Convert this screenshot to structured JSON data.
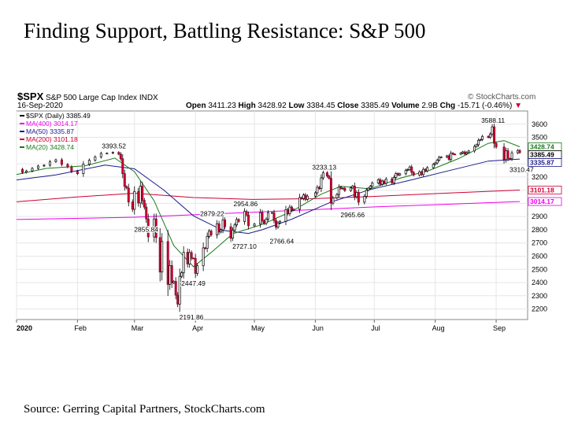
{
  "slide": {
    "title": "Finding Support, Battling Resistance: S&P 500",
    "source": "Source: Gerring Capital Partners, StockCharts.com"
  },
  "header": {
    "ticker": "$SPX",
    "name": "S&P 500 Large Cap Index",
    "exchange": "INDX",
    "date": "16-Sep-2020",
    "watermark": "© StockCharts.com",
    "open_label": "Open",
    "open": "3411.23",
    "high_label": "High",
    "high": "3428.92",
    "low_label": "Low",
    "low": "3384.45",
    "close_label": "Close",
    "close": "3385.49",
    "volume_label": "Volume",
    "volume": "2.9B",
    "chg_label": "Chg",
    "chg": "-15.71 (-0.46%)"
  },
  "legend": [
    {
      "text": "$SPX (Daily) 3385.49",
      "color": "#000000"
    },
    {
      "text": "MA(400) 3014.17",
      "color": "#ee00ee"
    },
    {
      "text": "MA(50) 3335.87",
      "color": "#1a1a8c"
    },
    {
      "text": "MA(200) 3101.18",
      "color": "#cc0033"
    },
    {
      "text": "MA(20) 3428.74",
      "color": "#1a7a1a"
    }
  ],
  "chart_data": {
    "type": "candlestick",
    "x_tick_labels": [
      "2020",
      "Feb",
      "Mar",
      "Apr",
      "May",
      "Jun",
      "Jul",
      "Aug",
      "Sep"
    ],
    "x_tick_days": [
      0,
      31,
      60,
      91,
      121,
      152,
      182,
      213,
      244
    ],
    "y_ticks": [
      2200,
      2300,
      2400,
      2500,
      2600,
      2700,
      2800,
      2900,
      3000,
      3100,
      3200,
      3300,
      3500,
      3600
    ],
    "ylim": [
      2120,
      3700
    ],
    "xlim_days": [
      0,
      260
    ],
    "closes": [
      [
        0,
        3258
      ],
      [
        3,
        3235
      ],
      [
        5,
        3246
      ],
      [
        8,
        3265
      ],
      [
        11,
        3283
      ],
      [
        14,
        3289
      ],
      [
        17,
        3316
      ],
      [
        20,
        3330
      ],
      [
        23,
        3295
      ],
      [
        26,
        3276
      ],
      [
        28,
        3243
      ],
      [
        31,
        3225
      ],
      [
        34,
        3297
      ],
      [
        37,
        3327
      ],
      [
        40,
        3352
      ],
      [
        43,
        3379
      ],
      [
        46,
        3380
      ],
      [
        49,
        3386
      ],
      [
        52,
        3373
      ],
      [
        53,
        3338
      ],
      [
        54,
        3225
      ],
      [
        55,
        3128
      ],
      [
        56,
        3116
      ],
      [
        57,
        3010
      ],
      [
        59,
        2955
      ],
      [
        60,
        3090
      ],
      [
        62,
        3003
      ],
      [
        63,
        3130
      ],
      [
        64,
        3023
      ],
      [
        65,
        2972
      ],
      [
        66,
        2882
      ],
      [
        67,
        2746
      ],
      [
        70,
        2882
      ],
      [
        71,
        2741
      ],
      [
        73,
        2480
      ],
      [
        74,
        2711
      ],
      [
        77,
        2386
      ],
      [
        78,
        2529
      ],
      [
        79,
        2398
      ],
      [
        80,
        2409
      ],
      [
        81,
        2305
      ],
      [
        82,
        2237
      ],
      [
        83,
        2447
      ],
      [
        84,
        2475
      ],
      [
        85,
        2630
      ],
      [
        87,
        2541
      ],
      [
        88,
        2627
      ],
      [
        89,
        2585
      ],
      [
        90,
        2584
      ],
      [
        91,
        2470
      ],
      [
        92,
        2527
      ],
      [
        95,
        2663
      ],
      [
        96,
        2659
      ],
      [
        97,
        2750
      ],
      [
        98,
        2790
      ],
      [
        99,
        2761
      ],
      [
        102,
        2846
      ],
      [
        103,
        2783
      ],
      [
        104,
        2799
      ],
      [
        105,
        2875
      ],
      [
        106,
        2823
      ],
      [
        109,
        2736
      ],
      [
        110,
        2797
      ],
      [
        111,
        2837
      ],
      [
        112,
        2878
      ],
      [
        113,
        2863
      ],
      [
        116,
        2939
      ],
      [
        117,
        2912
      ],
      [
        118,
        2830
      ],
      [
        121,
        2843
      ],
      [
        124,
        2930
      ],
      [
        125,
        2868
      ],
      [
        126,
        2848
      ],
      [
        127,
        2881
      ],
      [
        128,
        2930
      ],
      [
        130,
        2930
      ],
      [
        131,
        2870
      ],
      [
        132,
        2820
      ],
      [
        133,
        2852
      ],
      [
        134,
        2864
      ],
      [
        137,
        2953
      ],
      [
        138,
        2922
      ],
      [
        139,
        2972
      ],
      [
        140,
        2948
      ],
      [
        141,
        2955
      ],
      [
        144,
        3044
      ],
      [
        145,
        3036
      ],
      [
        146,
        3064
      ],
      [
        147,
        3030
      ],
      [
        148,
        3055
      ],
      [
        152,
        3080
      ],
      [
        153,
        3122
      ],
      [
        154,
        3112
      ],
      [
        155,
        3193
      ],
      [
        156,
        3232
      ],
      [
        158,
        3207
      ],
      [
        159,
        3190
      ],
      [
        160,
        3002
      ],
      [
        161,
        3041
      ],
      [
        163,
        3067
      ],
      [
        164,
        3124
      ],
      [
        165,
        3113
      ],
      [
        166,
        3115
      ],
      [
        167,
        3097
      ],
      [
        170,
        3117
      ],
      [
        171,
        3131
      ],
      [
        172,
        3050
      ],
      [
        173,
        3083
      ],
      [
        174,
        3009
      ],
      [
        177,
        3053
      ],
      [
        178,
        3100
      ],
      [
        179,
        3115
      ],
      [
        180,
        3130
      ],
      [
        181,
        3155
      ],
      [
        184,
        3179
      ],
      [
        185,
        3145
      ],
      [
        186,
        3169
      ],
      [
        187,
        3152
      ],
      [
        188,
        3185
      ],
      [
        191,
        3155
      ],
      [
        192,
        3197
      ],
      [
        193,
        3226
      ],
      [
        194,
        3215
      ],
      [
        195,
        3224
      ],
      [
        198,
        3251
      ],
      [
        199,
        3257
      ],
      [
        200,
        3276
      ],
      [
        201,
        3235
      ],
      [
        202,
        3215
      ],
      [
        205,
        3239
      ],
      [
        206,
        3218
      ],
      [
        207,
        3258
      ],
      [
        208,
        3246
      ],
      [
        209,
        3271
      ],
      [
        212,
        3295
      ],
      [
        213,
        3306
      ],
      [
        214,
        3327
      ],
      [
        215,
        3349
      ],
      [
        216,
        3351
      ],
      [
        219,
        3360
      ],
      [
        220,
        3333
      ],
      [
        221,
        3380
      ],
      [
        222,
        3373
      ],
      [
        223,
        3372
      ],
      [
        226,
        3381
      ],
      [
        227,
        3390
      ],
      [
        228,
        3374
      ],
      [
        229,
        3385
      ],
      [
        230,
        3397
      ],
      [
        233,
        3431
      ],
      [
        234,
        3444
      ],
      [
        235,
        3478
      ],
      [
        236,
        3484
      ],
      [
        237,
        3508
      ],
      [
        240,
        3500
      ],
      [
        241,
        3526
      ],
      [
        242,
        3580
      ],
      [
        243,
        3455
      ],
      [
        244,
        3427
      ],
      [
        248,
        3331
      ],
      [
        249,
        3399
      ],
      [
        250,
        3340
      ],
      [
        251,
        3339
      ],
      [
        252,
        3383
      ],
      [
        255,
        3401
      ],
      [
        256,
        3385
      ]
    ],
    "annotations": [
      {
        "day": 49,
        "value": 3393.52,
        "label": "3393.52"
      },
      {
        "day": 59,
        "value": 2855.84,
        "label": "2855.84"
      },
      {
        "day": 82,
        "value": 2191.86,
        "label": "2191.86"
      },
      {
        "day": 83,
        "value": 2447.49,
        "label": "2447.49"
      },
      {
        "day": 99,
        "value": 2879.22,
        "label": "2879.22"
      },
      {
        "day": 109,
        "value": 2727.1,
        "label": "2727.10"
      },
      {
        "day": 116,
        "value": 2954.86,
        "label": "2954.86"
      },
      {
        "day": 128,
        "value": 2766.64,
        "label": "2766.64"
      },
      {
        "day": 156,
        "value": 3233.13,
        "label": "3233.13"
      },
      {
        "day": 164,
        "value": 2965.66,
        "label": "2965.66"
      },
      {
        "day": 242,
        "value": 3588.11,
        "label": "3588.11"
      },
      {
        "day": 250,
        "value": 3310.47,
        "label": "3310.47"
      }
    ],
    "series": [
      {
        "name": "MA(400)",
        "color": "#ee00ee",
        "points": [
          [
            0,
            2878
          ],
          [
            60,
            2895
          ],
          [
            120,
            2932
          ],
          [
            180,
            2972
          ],
          [
            256,
            3014
          ]
        ]
      },
      {
        "name": "MA(200)",
        "color": "#cc0033",
        "points": [
          [
            0,
            3012
          ],
          [
            30,
            3048
          ],
          [
            60,
            3077
          ],
          [
            90,
            3044
          ],
          [
            120,
            3030
          ],
          [
            150,
            3035
          ],
          [
            180,
            3052
          ],
          [
            220,
            3078
          ],
          [
            256,
            3101
          ]
        ]
      },
      {
        "name": "MA(50)",
        "color": "#1a1a8c",
        "points": [
          [
            0,
            3178
          ],
          [
            20,
            3215
          ],
          [
            45,
            3290
          ],
          [
            60,
            3262
          ],
          [
            75,
            3100
          ],
          [
            90,
            2905
          ],
          [
            105,
            2795
          ],
          [
            118,
            2772
          ],
          [
            125,
            2800
          ],
          [
            140,
            2880
          ],
          [
            160,
            3010
          ],
          [
            180,
            3105
          ],
          [
            200,
            3175
          ],
          [
            220,
            3248
          ],
          [
            240,
            3320
          ],
          [
            256,
            3336
          ]
        ]
      },
      {
        "name": "MA(20)",
        "color": "#1a7a1a",
        "points": [
          [
            0,
            3218
          ],
          [
            15,
            3265
          ],
          [
            35,
            3285
          ],
          [
            50,
            3343
          ],
          [
            60,
            3240
          ],
          [
            70,
            3020
          ],
          [
            80,
            2680
          ],
          [
            90,
            2520
          ],
          [
            100,
            2640
          ],
          [
            110,
            2770
          ],
          [
            125,
            2840
          ],
          [
            140,
            2940
          ],
          [
            155,
            3070
          ],
          [
            165,
            3130
          ],
          [
            180,
            3110
          ],
          [
            195,
            3190
          ],
          [
            210,
            3250
          ],
          [
            225,
            3340
          ],
          [
            240,
            3455
          ],
          [
            248,
            3475
          ],
          [
            256,
            3429
          ]
        ]
      }
    ],
    "right_labels": [
      {
        "text": "3428.74",
        "color": "#1a7a1a",
        "value": 3428.74
      },
      {
        "text": "3385.49",
        "color": "#000000",
        "value": 3385.49
      },
      {
        "text": "3335.87",
        "color": "#1a1a8c",
        "value": 3335.87
      },
      {
        "text": "3101.18",
        "color": "#cc0033",
        "value": 3101.18
      },
      {
        "text": "3014.17",
        "color": "#ee00ee",
        "value": 3014.17
      }
    ]
  }
}
